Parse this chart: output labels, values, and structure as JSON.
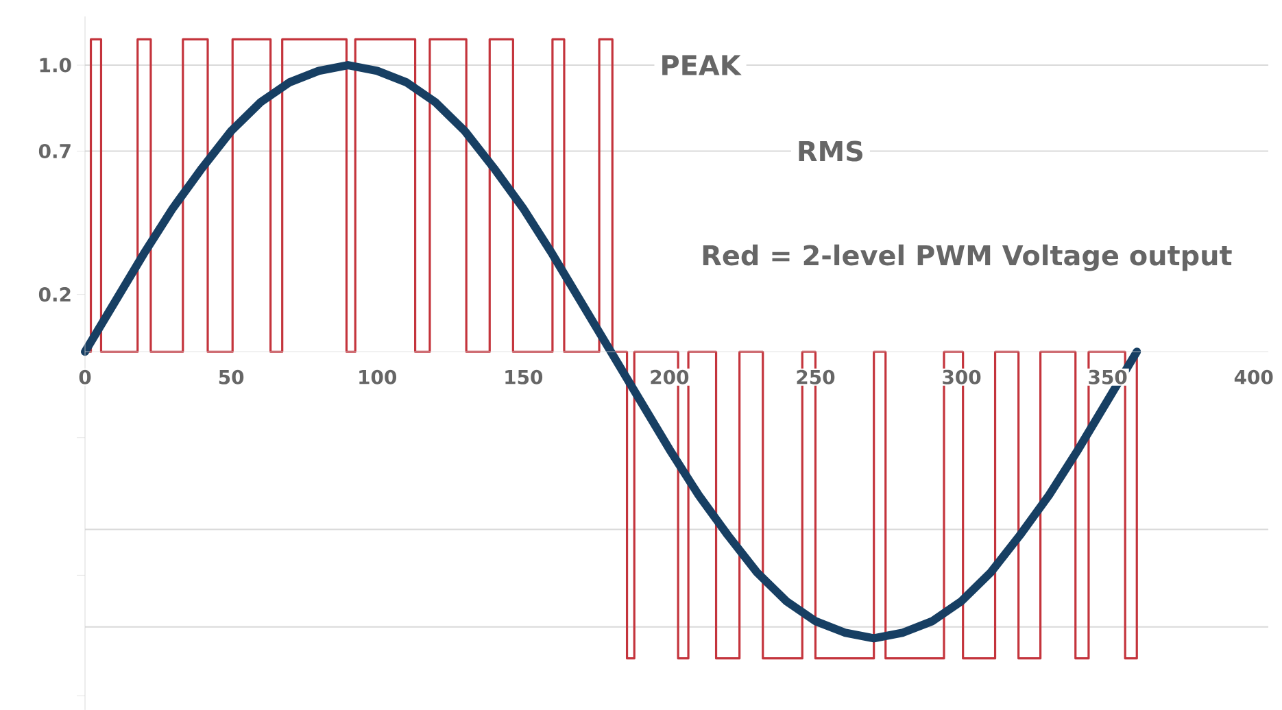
{
  "chart_data": {
    "type": "line",
    "series": [
      {
        "color": "#c4343c",
        "x": [
          0,
          2,
          2,
          5.5,
          5.5,
          18,
          18,
          22.5,
          22.5,
          33.5,
          33.5,
          42,
          42,
          50.5,
          50.5,
          63.5,
          63.5,
          67.5,
          67.5,
          89.5,
          89.5,
          92.5,
          92.5,
          113,
          113,
          118,
          118,
          130.5,
          130.5,
          138.5,
          138.5,
          146.5,
          146.5,
          160,
          160,
          164,
          164,
          176,
          176,
          180.5,
          180.5,
          185.5,
          185.5,
          188,
          188,
          203,
          203,
          206.5,
          206.5,
          216,
          216,
          224,
          224,
          232,
          232,
          245.5,
          245.5,
          250,
          250,
          270,
          270,
          274,
          274,
          294,
          294,
          300.5,
          300.5,
          311.5,
          311.5,
          319.5,
          319.5,
          327,
          327,
          339,
          339,
          343.5,
          343.5,
          356,
          356,
          360,
          360
        ],
        "values": [
          0,
          0,
          1.09,
          1.09,
          0,
          0,
          1.09,
          1.09,
          0,
          0,
          1.09,
          1.09,
          0,
          0,
          1.09,
          1.09,
          0,
          0,
          1.09,
          1.09,
          0,
          0,
          1.09,
          1.09,
          0,
          0,
          1.09,
          1.09,
          0,
          0,
          1.09,
          1.09,
          0,
          0,
          1.09,
          1.09,
          0,
          0,
          1.09,
          1.09,
          0,
          0,
          -1.07,
          -1.07,
          0,
          0,
          -1.07,
          -1.07,
          0,
          0,
          -1.07,
          -1.07,
          0,
          0,
          -1.07,
          -1.07,
          0,
          0,
          -1.07,
          -1.07,
          0,
          0,
          -1.07,
          -1.07,
          0,
          0,
          -1.07,
          -1.07,
          0,
          0,
          -1.07,
          -1.07,
          0,
          0,
          -1.07,
          -1.07,
          0,
          0,
          -1.07,
          -1.07,
          0
        ]
      },
      {
        "color": "#173f63",
        "x": [
          0,
          10,
          20,
          30,
          40,
          50,
          60,
          70,
          80,
          90,
          100,
          110,
          120,
          130,
          140,
          150,
          160,
          170,
          180,
          190,
          200,
          210,
          220,
          230,
          240,
          250,
          260,
          270,
          280,
          290,
          300,
          310,
          320,
          330,
          340,
          350,
          360
        ],
        "values": [
          0,
          0.17,
          0.34,
          0.5,
          0.64,
          0.77,
          0.87,
          0.94,
          0.98,
          1,
          0.98,
          0.94,
          0.87,
          0.77,
          0.64,
          0.5,
          0.34,
          0.17,
          0,
          -0.17,
          -0.34,
          -0.5,
          -0.64,
          -0.77,
          -0.87,
          -0.94,
          -0.98,
          -1,
          -0.98,
          -0.94,
          -0.87,
          -0.77,
          -0.64,
          -0.5,
          -0.34,
          -0.17,
          0
        ]
      }
    ],
    "xlim": [
      0,
      405
    ],
    "xticks": [
      0,
      50,
      100,
      150,
      200,
      250,
      300,
      350,
      400
    ],
    "ylim": [
      -1.25,
      1.17
    ],
    "yticks": [
      {
        "value": 1,
        "label": "1.0"
      },
      0.7,
      0.2,
      {
        "value": -0.3,
        "label": null
      },
      {
        "value": -0.78,
        "label": null
      },
      {
        "value": -1.2,
        "label": null
      }
    ],
    "ref_lines": [
      {
        "axis": "y",
        "value": 1,
        "label": "PEAK"
      },
      {
        "axis": "y",
        "value": 0.7,
        "label": "RMS"
      },
      {
        "axis": "y",
        "value": -0.62
      },
      {
        "axis": "y",
        "value": -0.96
      }
    ],
    "annotations": [
      "Red = 2-level PWM Voltage output"
    ]
  }
}
